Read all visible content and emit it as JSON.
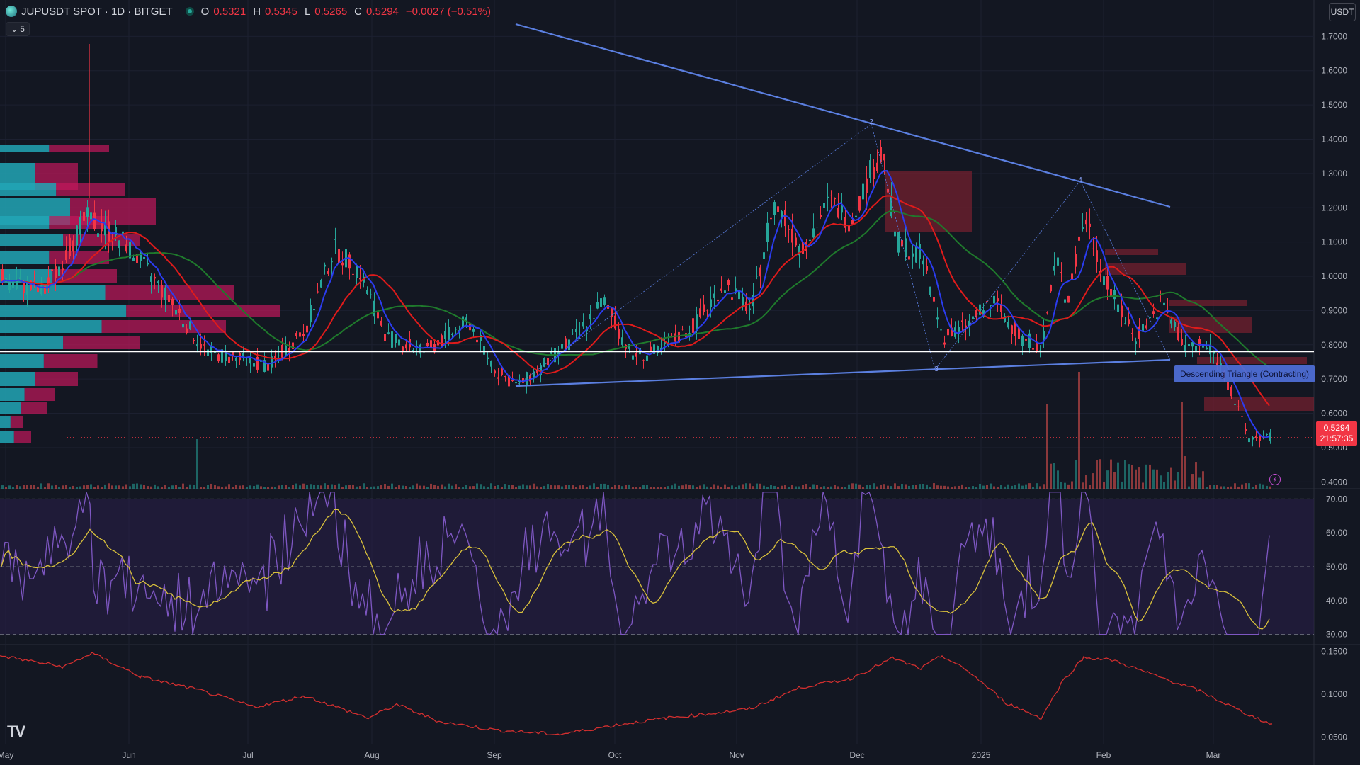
{
  "header": {
    "symbol": "JUPUSDT SPOT · 1D · BITGET",
    "open_label": "O",
    "open": "0.5321",
    "high_label": "H",
    "high": "0.5345",
    "low_label": "L",
    "low": "0.5265",
    "close_label": "C",
    "close": "0.5294",
    "change": "−0.0027 (−0.51%)",
    "indicators_collapsed_count": "5"
  },
  "currency_button": "USDT",
  "last_price": {
    "value": "0.5294",
    "countdown": "21:57:35"
  },
  "pattern_label": "Descending Triangle (Contracting)",
  "colors": {
    "background": "#131722",
    "up": "#26a69a",
    "down": "#f23645",
    "ma_fast": "#2b3cf0",
    "ma_mid": "#e01b1b",
    "ma_slow": "#1f7a2c",
    "trendline": "#5b7fe0",
    "rsi": "#7e57c2",
    "rsi_ma": "#d9c13b",
    "lower_indicator": "#d32f2f"
  },
  "icons": [
    "symbol-logo-icon",
    "market-open-dot-icon",
    "chevron-down-icon",
    "tradingview-logo-icon",
    "lightning-icon"
  ],
  "chart_data": {
    "type": "candlestick",
    "x_axis_labels": [
      "May",
      "Jun",
      "Jul",
      "Aug",
      "Sep",
      "Oct",
      "Nov",
      "Dec",
      "2025",
      "Feb",
      "Mar"
    ],
    "price_axis": [
      "1.7000",
      "1.6000",
      "1.5000",
      "1.4000",
      "1.3000",
      "1.2000",
      "1.1000",
      "1.0000",
      "0.9000",
      "0.8000",
      "0.7000",
      "0.6000",
      "0.5000",
      "0.4000"
    ],
    "price_range": [
      0.38,
      1.74
    ],
    "rsi_axis": [
      "70.00",
      "60.00",
      "50.00",
      "40.00",
      "30.00"
    ],
    "rsi_range": [
      27,
      73
    ],
    "lower_axis": [
      "0.1500",
      "0.1000",
      "0.0500"
    ],
    "lower_range": [
      0.042,
      0.158
    ],
    "horizontal_level": 0.78,
    "triangle_points": [
      "2",
      "3",
      "4"
    ]
  }
}
